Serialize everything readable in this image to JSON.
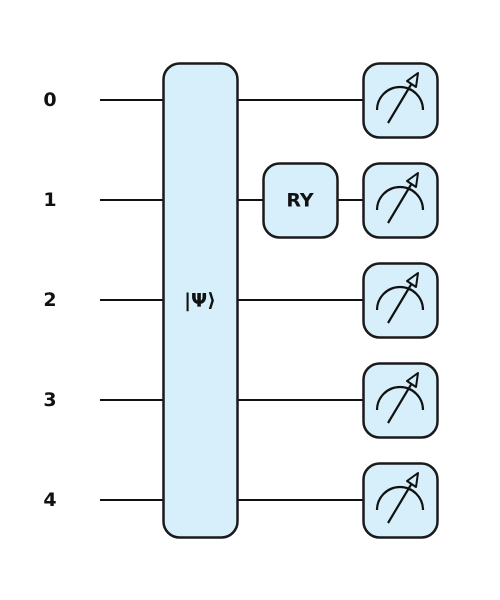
{
  "circuit": {
    "qubits": [
      {
        "label": "0"
      },
      {
        "label": "1"
      },
      {
        "label": "2"
      },
      {
        "label": "3"
      },
      {
        "label": "4"
      }
    ],
    "gates": [
      {
        "label": "|Ψ⟩",
        "kind": "state-preparation",
        "qubits": [
          0,
          1,
          2,
          3,
          4
        ],
        "column": 0
      },
      {
        "label": "RY",
        "kind": "rotation",
        "qubits": [
          1
        ],
        "column": 1
      }
    ],
    "measurements": [
      {
        "qubit": 0,
        "icon": "meter-icon"
      },
      {
        "qubit": 1,
        "icon": "meter-icon"
      },
      {
        "qubit": 2,
        "icon": "meter-icon"
      },
      {
        "qubit": 3,
        "icon": "meter-icon"
      },
      {
        "qubit": 4,
        "icon": "meter-icon"
      }
    ],
    "colors": {
      "gate_fill": "#d6effa",
      "gate_stroke": "#1a1a1a",
      "wire": "#111111",
      "text": "#111111"
    }
  }
}
